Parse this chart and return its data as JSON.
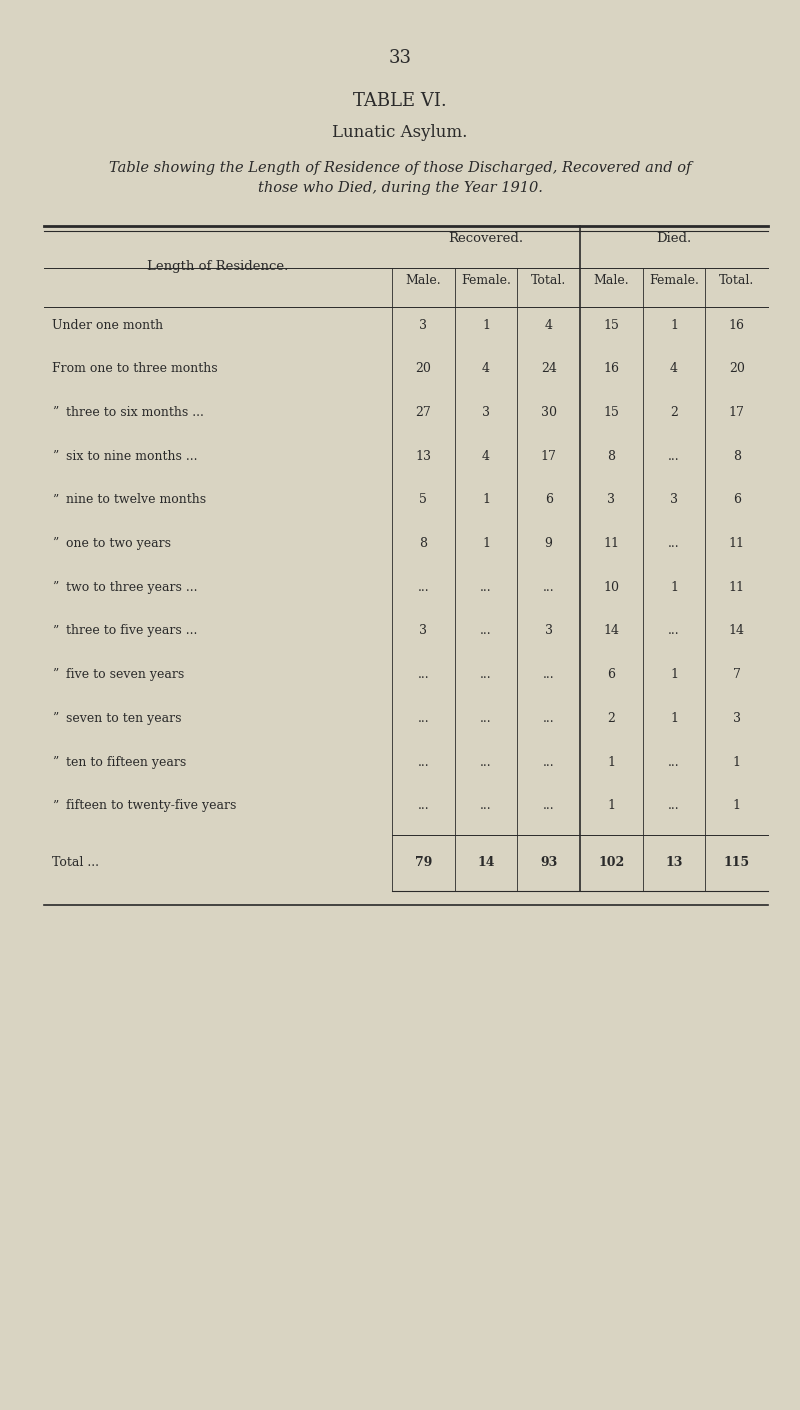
{
  "page_number": "33",
  "title1": "TABLE VI.",
  "title2": "Lunatic Asylum.",
  "subtitle": "Table showing the Length of Residence of those Discharged, Recovered and of\nthose who Died, during the Year 1910.",
  "bg_color": "#d9d4c2",
  "header_group1": "Recovered.",
  "header_group2": "Died.",
  "col_headers": [
    "Male.",
    "Female.",
    "Total.",
    "Male.",
    "Female.",
    "Total."
  ],
  "row_label_header": "Length of Residence.",
  "rows": [
    {
      "label": "Under one month",
      "prefix": "",
      "dots": "... ... ...",
      "rec_m": "3",
      "rec_f": "1",
      "rec_t": "4",
      "die_m": "15",
      "die_f": "1",
      "die_t": "16"
    },
    {
      "label": "From one to three months",
      "prefix": "",
      "dots": "... ...",
      "rec_m": "20",
      "rec_f": "4",
      "rec_t": "24",
      "die_m": "16",
      "die_f": "4",
      "die_t": "20"
    },
    {
      "label": "three to six months ...",
      "prefix": "”",
      "dots": "... ...",
      "rec_m": "27",
      "rec_f": "3",
      "rec_t": "30",
      "die_m": "15",
      "die_f": "2",
      "die_t": "17"
    },
    {
      "label": "six to nine months ...",
      "prefix": "”",
      "dots": "... ...",
      "rec_m": "13",
      "rec_f": "4",
      "rec_t": "17",
      "die_m": "8",
      "die_f": "...",
      "die_t": "8"
    },
    {
      "label": "nine to twelve months",
      "prefix": "”",
      "dots": "... ...",
      "rec_m": "5",
      "rec_f": "1",
      "rec_t": "6",
      "die_m": "3",
      "die_f": "3",
      "die_t": "6"
    },
    {
      "label": "one to two years",
      "prefix": "”",
      "dots": "... ... ...",
      "rec_m": "8",
      "rec_f": "1",
      "rec_t": "9",
      "die_m": "11",
      "die_f": "...",
      "die_t": "11"
    },
    {
      "label": "two to three years ...",
      "prefix": "”",
      "dots": "... ...",
      "rec_m": "...",
      "rec_f": "...",
      "rec_t": "...",
      "die_m": "10",
      "die_f": "1",
      "die_t": "11"
    },
    {
      "label": "three to five years ...",
      "prefix": "”",
      "dots": "... ...",
      "rec_m": "3",
      "rec_f": "...",
      "rec_t": "3",
      "die_m": "14",
      "die_f": "...",
      "die_t": "14"
    },
    {
      "label": "five to seven years",
      "prefix": "”",
      "dots": "... ...",
      "rec_m": "...",
      "rec_f": "...",
      "rec_t": "...",
      "die_m": "6",
      "die_f": "1",
      "die_t": "7"
    },
    {
      "label": "seven to ten years",
      "prefix": "”",
      "dots": "... ...",
      "rec_m": "...",
      "rec_f": "...",
      "rec_t": "...",
      "die_m": "2",
      "die_f": "1",
      "die_t": "3"
    },
    {
      "label": "ten to fifteen years",
      "prefix": "”",
      "dots": "... ..",
      "rec_m": "...",
      "rec_f": "...",
      "rec_t": "...",
      "die_m": "1",
      "die_f": "...",
      "die_t": "1"
    },
    {
      "label": "fifteen to twenty-five years",
      "prefix": "”",
      "dots": "... ...",
      "rec_m": "...",
      "rec_f": "...",
      "rec_t": "...",
      "die_m": "1",
      "die_f": "...",
      "die_t": "1"
    }
  ],
  "total_label": "Total ...",
  "totals": [
    "79",
    "14",
    "93",
    "102",
    "13",
    "115"
  ]
}
